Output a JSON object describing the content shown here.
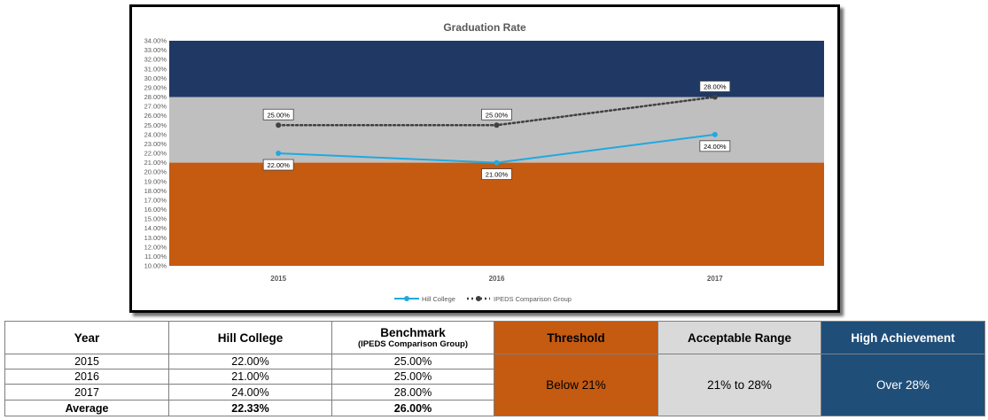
{
  "colors": {
    "high_band": "#203864",
    "acceptable_band": "#bfbfbf",
    "threshold_band": "#c55a11",
    "hill_college_line": "#1fa9e1",
    "ipeds_line": "#404040"
  },
  "chart_data": {
    "type": "line",
    "title": "Graduation Rate",
    "categories": [
      "2015",
      "2016",
      "2017"
    ],
    "series": [
      {
        "name": "Hill College",
        "values": [
          22.0,
          21.0,
          24.0
        ],
        "labels": [
          "22.00%",
          "21.00%",
          "24.00%"
        ],
        "style": "solid"
      },
      {
        "name": "IPEDS Comparison Group",
        "values": [
          25.0,
          25.0,
          28.0
        ],
        "labels": [
          "25.00%",
          "25.00%",
          "28.00%"
        ],
        "style": "dotted"
      }
    ],
    "bands": [
      {
        "name": "High Achievement",
        "from": 28,
        "to": 34
      },
      {
        "name": "Acceptable Range",
        "from": 21,
        "to": 28
      },
      {
        "name": "Threshold",
        "from": 10,
        "to": 21
      }
    ],
    "ylim": [
      10,
      34
    ],
    "ytick_step": 1,
    "ytick_format": "percent-2dp",
    "xlabel": "",
    "ylabel": "",
    "legend_position": "bottom",
    "grid": false
  },
  "table": {
    "headers": {
      "year": "Year",
      "hill_college": "Hill College",
      "benchmark": "Benchmark",
      "benchmark_sub": "(IPEDS Comparison Group)",
      "threshold": "Threshold",
      "acceptable": "Acceptable Range",
      "high": "High Achievement"
    },
    "rows": [
      {
        "year": "2015",
        "hill": "22.00%",
        "benchmark": "25.00%"
      },
      {
        "year": "2016",
        "hill": "21.00%",
        "benchmark": "25.00%"
      },
      {
        "year": "2017",
        "hill": "24.00%",
        "benchmark": "28.00%"
      }
    ],
    "average": {
      "label": "Average",
      "hill": "22.33%",
      "benchmark": "26.00%"
    },
    "threshold_value": "Below 21%",
    "acceptable_value": "21% to 28%",
    "high_value": "Over 28%"
  }
}
